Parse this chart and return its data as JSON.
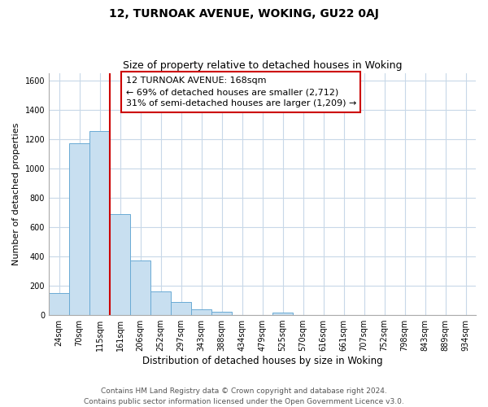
{
  "title": "12, TURNOAK AVENUE, WOKING, GU22 0AJ",
  "subtitle": "Size of property relative to detached houses in Woking",
  "xlabel": "Distribution of detached houses by size in Woking",
  "ylabel": "Number of detached properties",
  "bin_labels": [
    "24sqm",
    "70sqm",
    "115sqm",
    "161sqm",
    "206sqm",
    "252sqm",
    "297sqm",
    "343sqm",
    "388sqm",
    "434sqm",
    "479sqm",
    "525sqm",
    "570sqm",
    "616sqm",
    "661sqm",
    "707sqm",
    "752sqm",
    "798sqm",
    "843sqm",
    "889sqm",
    "934sqm"
  ],
  "bar_values": [
    148,
    1170,
    1255,
    690,
    370,
    160,
    90,
    38,
    22,
    0,
    0,
    15,
    0,
    0,
    0,
    0,
    0,
    0,
    0,
    0,
    0
  ],
  "bar_color": "#c8dff0",
  "bar_edge_color": "#6aaad4",
  "property_line_x": 3,
  "property_line_color": "#cc0000",
  "annotation_text": "12 TURNOAK AVENUE: 168sqm\n← 69% of detached houses are smaller (2,712)\n31% of semi-detached houses are larger (1,209) →",
  "annotation_box_color": "#ffffff",
  "annotation_box_edge": "#cc0000",
  "ylim": [
    0,
    1650
  ],
  "yticks": [
    0,
    200,
    400,
    600,
    800,
    1000,
    1200,
    1400,
    1600
  ],
  "footer": "Contains HM Land Registry data © Crown copyright and database right 2024.\nContains public sector information licensed under the Open Government Licence v3.0.",
  "background_color": "#ffffff",
  "grid_color": "#c8d8e8",
  "title_fontsize": 10,
  "subtitle_fontsize": 9,
  "ylabel_fontsize": 8,
  "xlabel_fontsize": 8.5,
  "tick_fontsize": 7,
  "annotation_fontsize": 8,
  "footer_fontsize": 6.5
}
